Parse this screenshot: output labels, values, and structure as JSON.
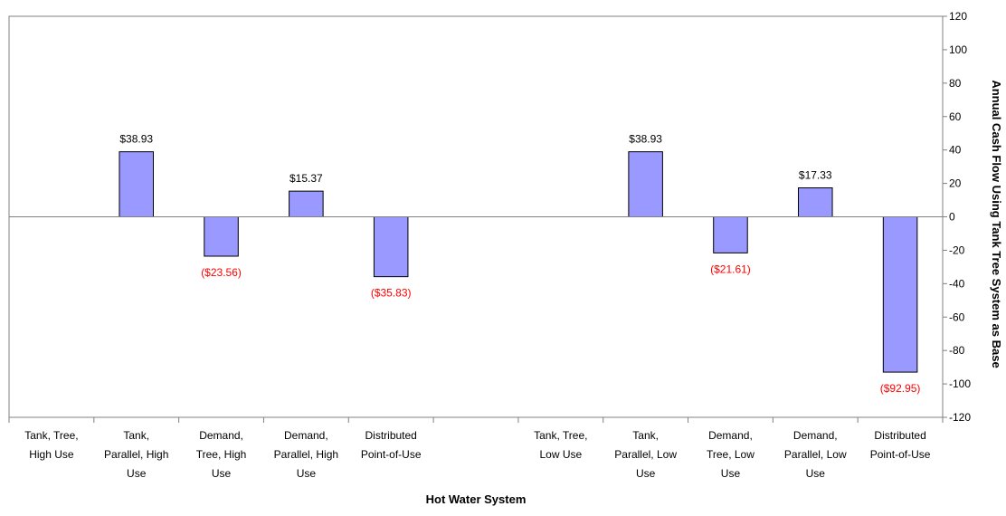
{
  "chart_data": {
    "type": "bar",
    "xlabel": "Hot Water System",
    "ylabel": "Annual Cash Flow Using Tank Tree System as Base",
    "ylim": [
      -120,
      120
    ],
    "yticks": [
      120,
      100,
      80,
      60,
      40,
      20,
      0,
      -20,
      -40,
      -60,
      -80,
      -100,
      -120
    ],
    "y_axis_position": "right",
    "grid": false,
    "legend": "none",
    "categories": [
      [
        "Tank, Tree,",
        "High Use"
      ],
      [
        "Tank,",
        "Parallel, High",
        "Use"
      ],
      [
        "Demand,",
        "Tree, High",
        "Use"
      ],
      [
        "Demand,",
        "Parallel, High",
        "Use"
      ],
      [
        "Distributed",
        "Point-of-Use"
      ],
      [],
      [
        "Tank, Tree,",
        "Low Use"
      ],
      [
        "Tank,",
        "Parallel, Low",
        "Use"
      ],
      [
        "Demand,",
        "Tree, Low",
        "Use"
      ],
      [
        "Demand,",
        "Parallel, Low",
        "Use"
      ],
      [
        "Distributed",
        "Point-of-Use"
      ]
    ],
    "values": [
      null,
      38.93,
      -23.56,
      15.37,
      -35.83,
      null,
      null,
      38.93,
      -21.61,
      17.33,
      -92.95
    ],
    "data_labels": [
      "",
      "$38.93",
      "($23.56)",
      "$15.37",
      "($35.83)",
      "",
      "",
      "$38.93",
      "($21.61)",
      "$17.33",
      "($92.95)"
    ],
    "colors": {
      "bar_fill": "#9999ff",
      "bar_stroke": "#000000",
      "positive_label": "#000000",
      "negative_label": "#ff0000",
      "axis": "#808080"
    }
  }
}
